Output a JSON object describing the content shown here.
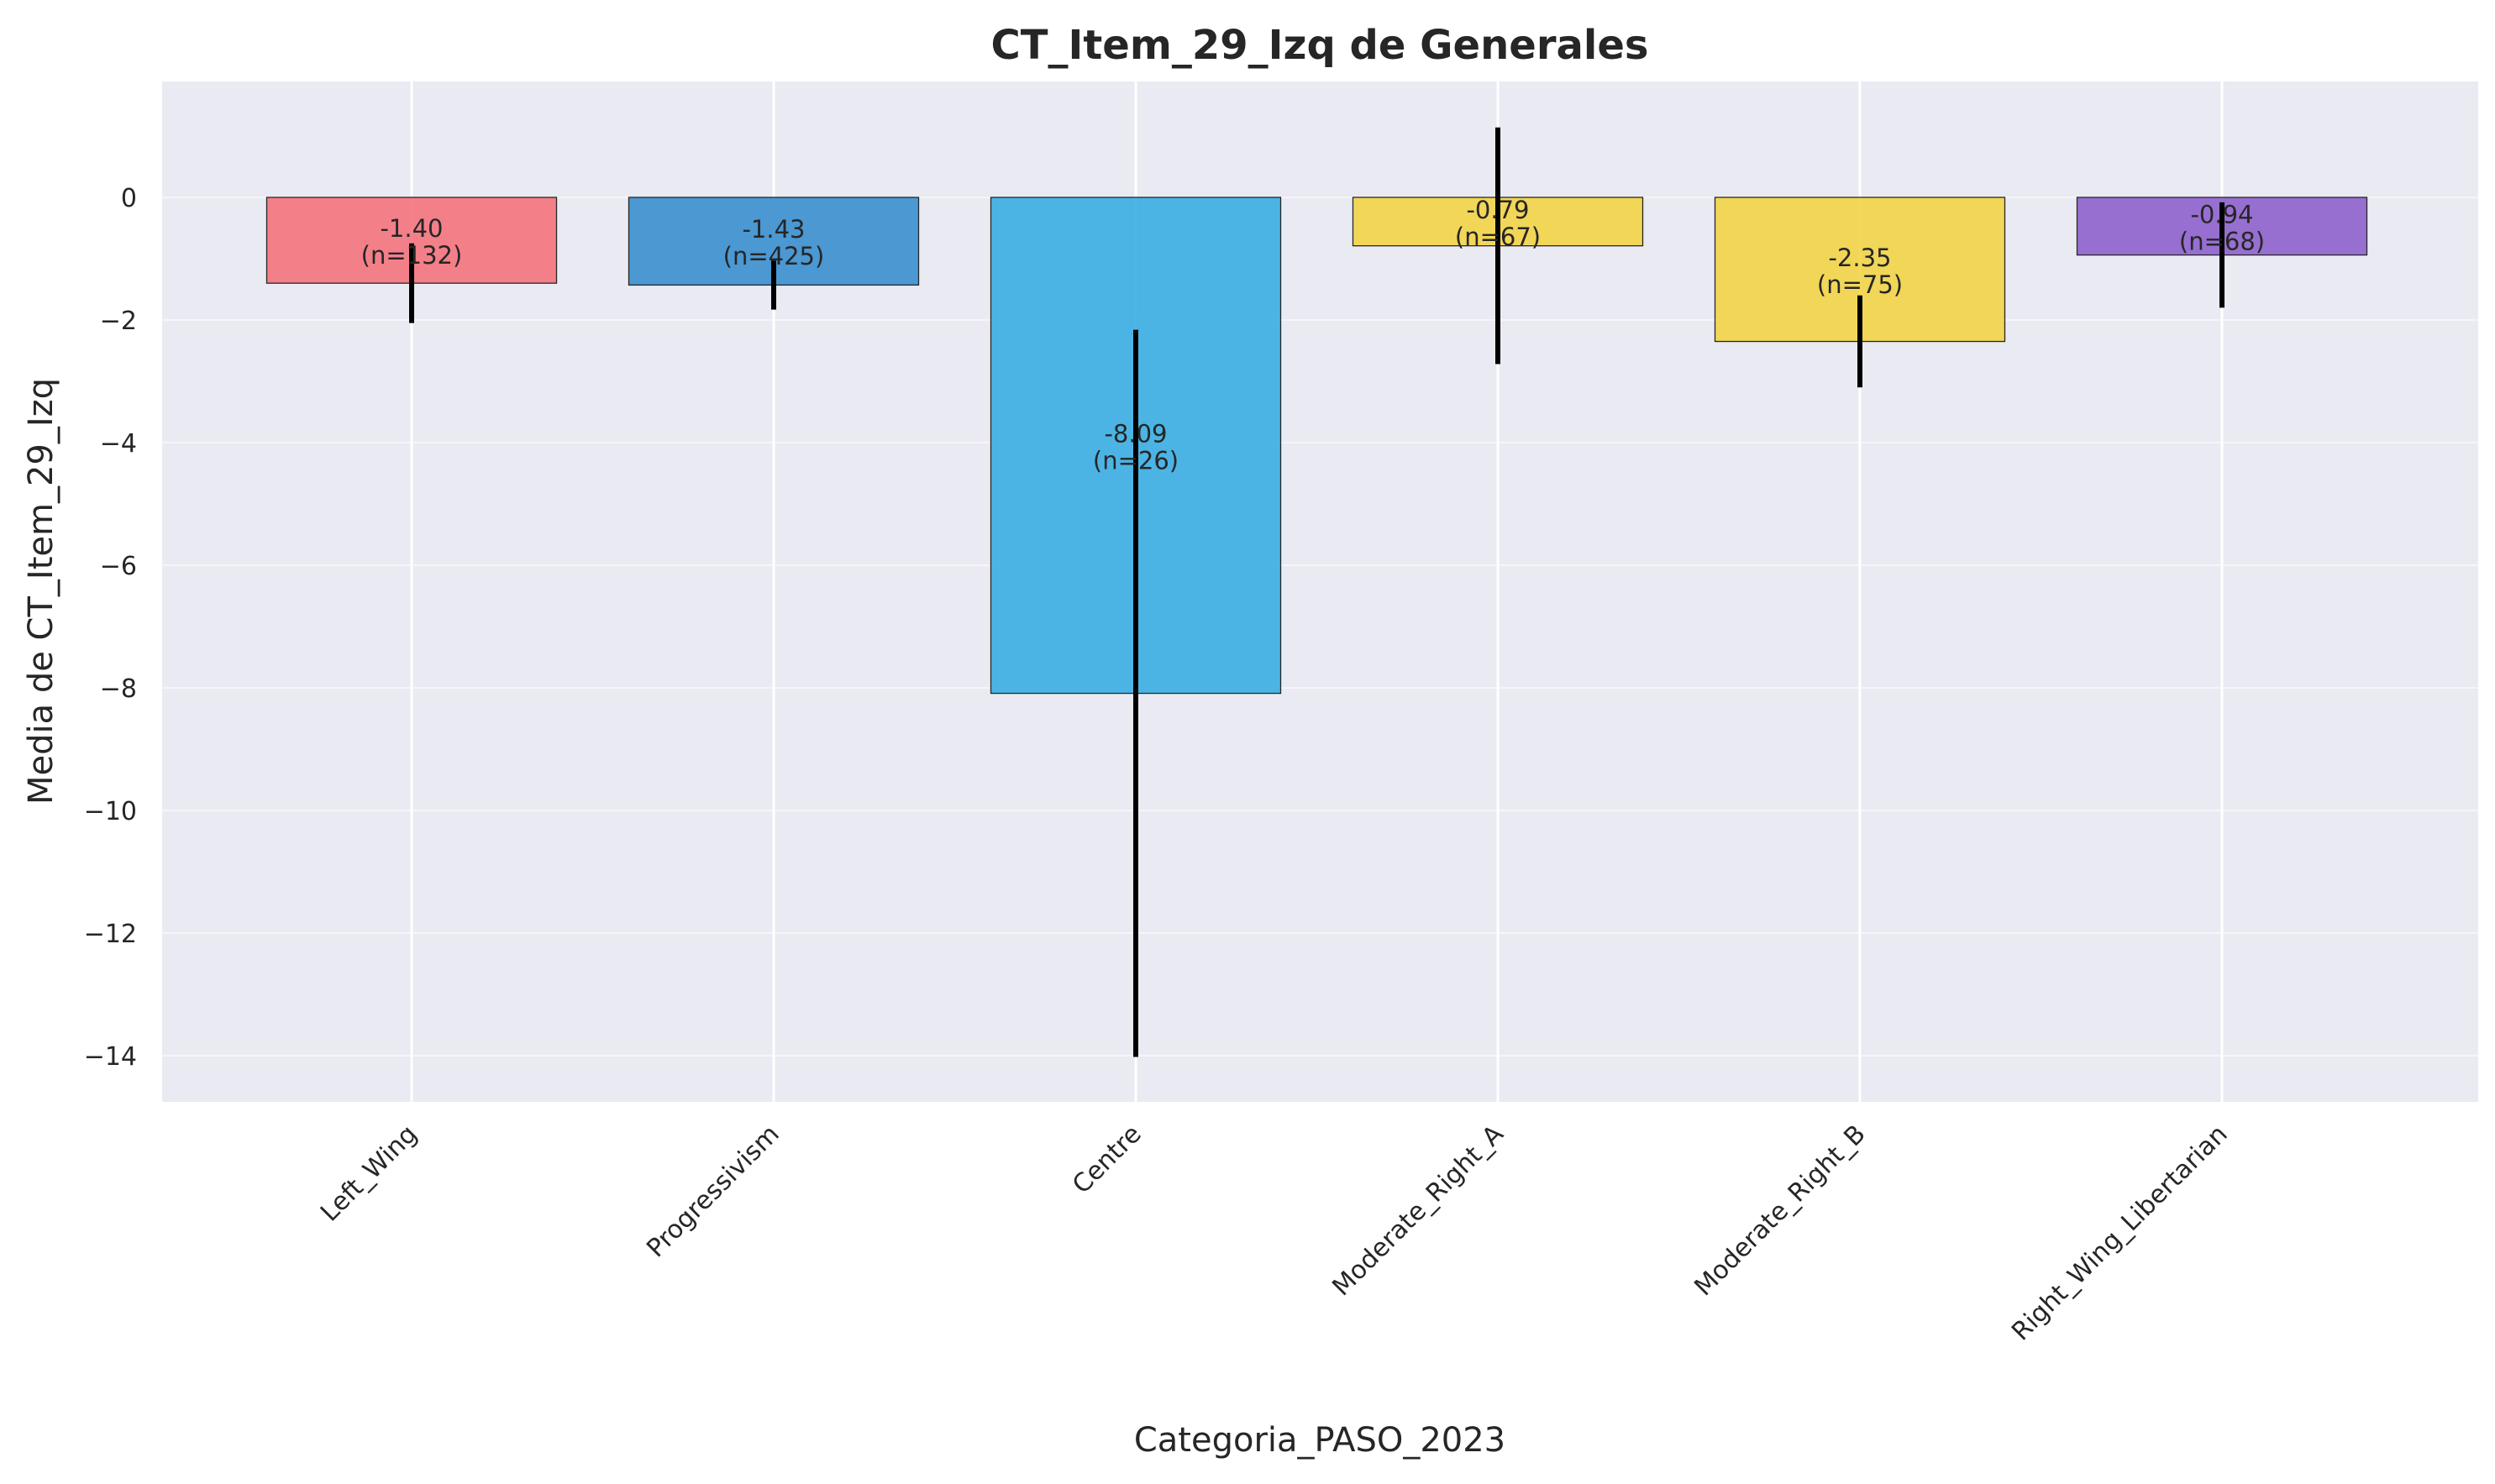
{
  "chart_data": {
    "type": "bar",
    "title": "CT_Item_29_Izq de Generales",
    "xlabel": "Categoria_PASO_2023",
    "ylabel": "Media de CT_Item_29_Izq",
    "ylim": [
      -14.8,
      1.9
    ],
    "yticks": [
      0,
      -2,
      -4,
      -6,
      -8,
      -10,
      -12,
      -14
    ],
    "grid": true,
    "categories": [
      "Left_Wing",
      "Progressivism",
      "Centre",
      "Moderate_Right_A",
      "Moderate_Right_B",
      "Right_Wing_Libertarian"
    ],
    "values": [
      -1.4,
      -1.43,
      -8.09,
      -0.79,
      -2.35,
      -0.94
    ],
    "value_labels": [
      "-1.40",
      "-1.43",
      "-8.09",
      "-0.79",
      "-2.35",
      "-0.94"
    ],
    "n_labels": [
      "(n=132)",
      "(n=425)",
      "(n=26)",
      "(n=67)",
      "(n=75)",
      "(n=68)"
    ],
    "error_low": [
      -2.05,
      -1.83,
      -14.02,
      -2.72,
      -3.1,
      -1.8
    ],
    "error_high": [
      -0.75,
      -1.03,
      -2.16,
      1.14,
      -1.6,
      -0.08
    ],
    "colors": [
      "#f4737d",
      "#3a8fce",
      "#3aaee2",
      "#f2d447",
      "#f2d447",
      "#8e62cc"
    ]
  }
}
